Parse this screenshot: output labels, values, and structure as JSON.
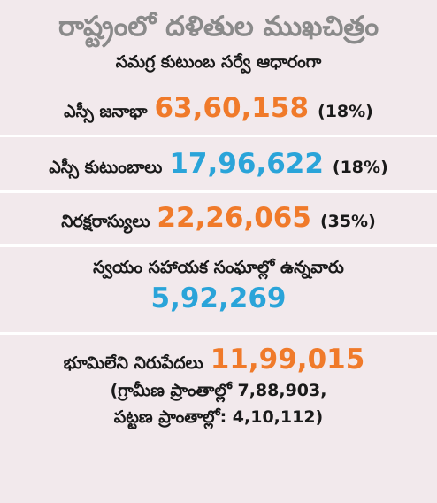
{
  "title": "రాష్ట్రంలో దళితుల ముఖచిత్రం",
  "subtitle": "సమగ్ర కుటుంబ సర్వే ఆధారంగా",
  "stats": [
    {
      "label": "ఎస్సీ జనాభా",
      "value": "63,60,158",
      "pct": "(18%)",
      "color": "#f07a2a"
    },
    {
      "label": "ఎస్సీ కుటుంబాలు",
      "value": "17,96,622",
      "pct": "(18%)",
      "color": "#2aa4d9"
    },
    {
      "label": "నిరక్షరాస్యులు",
      "value": "22,26,065",
      "pct": "(35%)",
      "color": "#f07a2a"
    }
  ],
  "shg": {
    "label": "స్వయం సహాయక సంఘాల్లో ఉన్నవారు",
    "value": "5,92,269"
  },
  "landless": {
    "label": "భూమిలేని నిరుపేదలు",
    "value": "11,99,015",
    "rural": "(గ్రామీణ ప్రాంతాల్లో 7,88,903,",
    "urban": "పట్టణ ప్రాంతాల్లో: 4,10,112)"
  },
  "colors": {
    "orange": "#f07a2a",
    "blue": "#2aa4d9",
    "background": "#f2e9ec",
    "title_gray": "#8a8a8a"
  }
}
